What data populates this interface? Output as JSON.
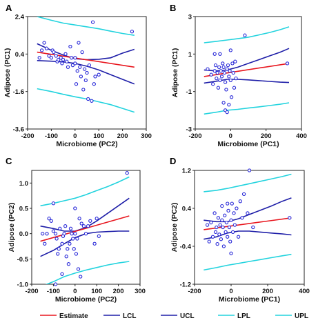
{
  "legend": [
    {
      "label": "Estimate",
      "color": "#e8161e"
    },
    {
      "label": "LCL",
      "color": "#1e1ea8"
    },
    {
      "label": "UCL",
      "color": "#1e1ea8"
    },
    {
      "label": "LPL",
      "color": "#22d3de"
    },
    {
      "label": "UPL",
      "color": "#22d3de"
    }
  ],
  "chart_data": [
    {
      "type": "scatter",
      "panel": "A",
      "xlabel": "Microbiome (PC2)",
      "ylabel": "Adipose (PC1)",
      "xlim": [
        -200,
        300
      ],
      "ylim": [
        -3.6,
        2.4
      ],
      "xticks": [
        -200,
        -100,
        0,
        100,
        200,
        300
      ],
      "yticks": [
        -3.6,
        -1.6,
        0.4,
        2.4
      ],
      "xticklabels": [
        "-200",
        "-100",
        "0",
        "100",
        "200",
        "300"
      ],
      "yticklabels": [
        "-3.6",
        "-1.6",
        "0.4",
        "2.4"
      ],
      "points": [
        [
          -150,
          0.2
        ],
        [
          -140,
          0.6
        ],
        [
          -130,
          1.0
        ],
        [
          -120,
          0.7
        ],
        [
          -110,
          0.3
        ],
        [
          -100,
          0.2
        ],
        [
          -95,
          0.6
        ],
        [
          -90,
          0.5
        ],
        [
          -80,
          0.3
        ],
        [
          -75,
          0.0
        ],
        [
          -70,
          0.1
        ],
        [
          -60,
          0.2
        ],
        [
          -55,
          -0.1
        ],
        [
          -50,
          0.1
        ],
        [
          -40,
          0.4
        ],
        [
          -35,
          0.0
        ],
        [
          -30,
          -0.3
        ],
        [
          -20,
          0.8
        ],
        [
          -15,
          0.2
        ],
        [
          -10,
          -0.2
        ],
        [
          0,
          0.2
        ],
        [
          0,
          -0.1
        ],
        [
          5,
          -1.2
        ],
        [
          10,
          -0.5
        ],
        [
          15,
          1.0
        ],
        [
          20,
          -0.3
        ],
        [
          25,
          -0.8
        ],
        [
          30,
          0.5
        ],
        [
          35,
          -1.5
        ],
        [
          40,
          -0.4
        ],
        [
          45,
          -1.0
        ],
        [
          50,
          -0.6
        ],
        [
          55,
          -2.0
        ],
        [
          60,
          -0.2
        ],
        [
          70,
          -2.1
        ],
        [
          75,
          2.1
        ],
        [
          80,
          -1.2
        ],
        [
          85,
          -0.8
        ],
        [
          100,
          -0.7
        ],
        [
          240,
          1.6
        ]
      ],
      "series": [
        {
          "name": "Estimate",
          "x": [
            -160,
            250
          ],
          "y": [
            0.5,
            -0.3
          ]
        },
        {
          "name": "LCL",
          "x": [
            -160,
            -100,
            -50,
            0,
            50,
            100,
            150,
            200,
            250
          ],
          "y": [
            0.05,
            0.02,
            -0.02,
            -0.1,
            -0.25,
            -0.45,
            -0.7,
            -0.95,
            -1.2
          ]
        },
        {
          "name": "UCL",
          "x": [
            -160,
            -100,
            -50,
            0,
            50,
            100,
            150,
            200,
            250
          ],
          "y": [
            0.95,
            0.6,
            0.35,
            0.15,
            0.1,
            0.12,
            0.2,
            0.45,
            0.65
          ]
        },
        {
          "name": "LPL",
          "x": [
            -160,
            -100,
            -50,
            0,
            50,
            100,
            150,
            200,
            250
          ],
          "y": [
            -1.45,
            -1.6,
            -1.75,
            -1.88,
            -2.0,
            -2.15,
            -2.3,
            -2.5,
            -2.7
          ]
        },
        {
          "name": "UPL",
          "x": [
            -160,
            -100,
            -50,
            0,
            50,
            100,
            150,
            200,
            250
          ],
          "y": [
            2.4,
            2.2,
            2.05,
            1.95,
            1.85,
            1.75,
            1.62,
            1.5,
            1.4
          ]
        }
      ]
    },
    {
      "type": "scatter",
      "panel": "B",
      "xlabel": "Microbiome (PC1)",
      "ylabel": "Adipose (PC1)",
      "xlim": [
        -200,
        400
      ],
      "ylim": [
        -3,
        3
      ],
      "xticks": [
        -200,
        0,
        200,
        400
      ],
      "yticks": [
        -3,
        -1,
        1,
        3
      ],
      "xticklabels": [
        "-200",
        "0",
        "200",
        "400"
      ],
      "yticklabels": [
        "-3",
        "-1",
        "1",
        "3"
      ],
      "points": [
        [
          -130,
          0.2
        ],
        [
          -110,
          -0.1
        ],
        [
          -100,
          -0.6
        ],
        [
          -90,
          0.1
        ],
        [
          -85,
          0.4
        ],
        [
          -80,
          -0.3
        ],
        [
          -75,
          0.0
        ],
        [
          -70,
          -0.8
        ],
        [
          -65,
          0.3
        ],
        [
          -60,
          -0.4
        ],
        [
          -55,
          0.1
        ],
        [
          -50,
          -0.2
        ],
        [
          -45,
          0.5
        ],
        [
          -40,
          0.3
        ],
        [
          -35,
          0.0
        ],
        [
          -30,
          -0.5
        ],
        [
          -25,
          -0.9
        ],
        [
          -20,
          0.2
        ],
        [
          -15,
          0.4
        ],
        [
          -10,
          -0.2
        ],
        [
          -5,
          0.1
        ],
        [
          0,
          -0.4
        ],
        [
          0,
          1.2
        ],
        [
          5,
          -1.3
        ],
        [
          10,
          0.5
        ],
        [
          15,
          0.0
        ],
        [
          20,
          -0.8
        ],
        [
          25,
          0.6
        ],
        [
          30,
          -0.3
        ],
        [
          -60,
          1.0
        ],
        [
          -90,
          1.0
        ],
        [
          -40,
          -1.6
        ],
        [
          -30,
          -2.0
        ],
        [
          -10,
          -1.7
        ],
        [
          80,
          2.0
        ],
        [
          -20,
          -2.1
        ],
        [
          320,
          0.5
        ]
      ],
      "series": [
        {
          "name": "Estimate",
          "x": [
            -150,
            330
          ],
          "y": [
            -0.2,
            0.5
          ]
        },
        {
          "name": "LCL",
          "x": [
            -150,
            -80,
            -20,
            40,
            100,
            160,
            220,
            280,
            330
          ],
          "y": [
            -0.55,
            -0.45,
            -0.35,
            -0.35,
            -0.38,
            -0.42,
            -0.46,
            -0.5,
            -0.52
          ]
        },
        {
          "name": "UCL",
          "x": [
            -150,
            -80,
            -20,
            40,
            100,
            160,
            220,
            280,
            330
          ],
          "y": [
            0.15,
            0.1,
            0.15,
            0.3,
            0.5,
            0.7,
            0.9,
            1.1,
            1.3
          ]
        },
        {
          "name": "LPL",
          "x": [
            -150,
            -80,
            -20,
            40,
            100,
            160,
            220,
            280,
            330
          ],
          "y": [
            -2.2,
            -2.1,
            -2.0,
            -1.95,
            -1.88,
            -1.82,
            -1.75,
            -1.68,
            -1.6
          ]
        },
        {
          "name": "UPL",
          "x": [
            -150,
            -80,
            -20,
            40,
            100,
            160,
            220,
            280,
            330
          ],
          "y": [
            1.6,
            1.68,
            1.75,
            1.82,
            1.9,
            2.02,
            2.15,
            2.3,
            2.45
          ]
        }
      ]
    },
    {
      "type": "scatter",
      "panel": "C",
      "xlabel": "Microbiome (PC2)",
      "ylabel": "Adipose (PC2)",
      "xlim": [
        -200,
        300
      ],
      "ylim": [
        -1.0,
        1.25
      ],
      "xticks": [
        -200,
        -100,
        0,
        100,
        200,
        300
      ],
      "yticks": [
        -1.0,
        -0.5,
        0.0,
        0.5,
        1.0
      ],
      "xticklabels": [
        "-200",
        "-100",
        "0",
        "100",
        "200",
        "300"
      ],
      "yticklabels": [
        "-1.0",
        "-0.5",
        "0.0",
        "0.5",
        "1.0"
      ],
      "points": [
        [
          -150,
          0.0
        ],
        [
          -140,
          -0.2
        ],
        [
          -130,
          0.0
        ],
        [
          -120,
          0.3
        ],
        [
          -110,
          0.25
        ],
        [
          -100,
          0.05
        ],
        [
          -100,
          0.6
        ],
        [
          -90,
          0.0
        ],
        [
          -85,
          -0.1
        ],
        [
          -80,
          -0.4
        ],
        [
          -75,
          -0.3
        ],
        [
          -70,
          0.1
        ],
        [
          -60,
          -0.2
        ],
        [
          -55,
          -0.05
        ],
        [
          -50,
          0.0
        ],
        [
          -45,
          0.15
        ],
        [
          -40,
          -0.45
        ],
        [
          -35,
          -0.3
        ],
        [
          -30,
          -0.6
        ],
        [
          -25,
          -0.2
        ],
        [
          -20,
          0.1
        ],
        [
          -15,
          0.0
        ],
        [
          -10,
          -0.1
        ],
        [
          -5,
          -0.3
        ],
        [
          0,
          0.5
        ],
        [
          0,
          0.0
        ],
        [
          5,
          -0.4
        ],
        [
          10,
          -0.1
        ],
        [
          15,
          -0.7
        ],
        [
          20,
          0.3
        ],
        [
          25,
          -0.85
        ],
        [
          30,
          0.2
        ],
        [
          40,
          0.15
        ],
        [
          50,
          0.0
        ],
        [
          60,
          0.15
        ],
        [
          70,
          0.25
        ],
        [
          90,
          -0.2
        ],
        [
          100,
          0.3
        ],
        [
          110,
          -0.05
        ],
        [
          240,
          1.2
        ],
        [
          -60,
          -0.8
        ],
        [
          -90,
          -1.0
        ]
      ],
      "series": [
        {
          "name": "Estimate",
          "x": [
            -160,
            250
          ],
          "y": [
            -0.15,
            0.35
          ]
        },
        {
          "name": "LCL",
          "x": [
            -160,
            -100,
            -50,
            0,
            50,
            100,
            150,
            200,
            250
          ],
          "y": [
            -0.45,
            -0.33,
            -0.2,
            -0.08,
            0.0,
            0.03,
            0.04,
            0.05,
            0.05
          ]
        },
        {
          "name": "UCL",
          "x": [
            -160,
            -100,
            -50,
            0,
            50,
            100,
            150,
            200,
            250
          ],
          "y": [
            0.15,
            0.1,
            0.05,
            0.05,
            0.12,
            0.25,
            0.4,
            0.55,
            0.7
          ]
        },
        {
          "name": "LPL",
          "x": [
            -160,
            -100,
            -50,
            0,
            50,
            100,
            150,
            200,
            250
          ],
          "y": [
            -1.05,
            -0.95,
            -0.85,
            -0.78,
            -0.72,
            -0.67,
            -0.62,
            -0.58,
            -0.55
          ]
        },
        {
          "name": "UPL",
          "x": [
            -160,
            -100,
            -50,
            0,
            50,
            100,
            150,
            200,
            250
          ],
          "y": [
            0.55,
            0.6,
            0.65,
            0.7,
            0.77,
            0.85,
            0.93,
            1.02,
            1.12
          ]
        }
      ]
    },
    {
      "type": "scatter",
      "panel": "D",
      "xlabel": "Microbiome (PC1)",
      "ylabel": "Adipose (PC2)",
      "xlim": [
        -200,
        400
      ],
      "ylim": [
        -1.2,
        1.2
      ],
      "xticks": [
        -200,
        0,
        200,
        400
      ],
      "yticks": [
        -1.2,
        -0.4,
        0.4,
        1.2
      ],
      "xticklabels": [
        "-200",
        "0",
        "200",
        "400"
      ],
      "yticklabels": [
        "-1.2",
        "-0.4",
        "0.4",
        "1.2"
      ],
      "points": [
        [
          -130,
          0.05
        ],
        [
          -120,
          -0.3
        ],
        [
          -110,
          0.1
        ],
        [
          -100,
          -0.2
        ],
        [
          -90,
          0.3
        ],
        [
          -85,
          -0.1
        ],
        [
          -80,
          0.0
        ],
        [
          -75,
          -0.35
        ],
        [
          -70,
          0.2
        ],
        [
          -65,
          -0.15
        ],
        [
          -60,
          0.05
        ],
        [
          -55,
          -0.25
        ],
        [
          -50,
          0.15
        ],
        [
          -45,
          0.0
        ],
        [
          -40,
          -0.4
        ],
        [
          -35,
          0.25
        ],
        [
          -30,
          -0.1
        ],
        [
          -25,
          0.1
        ],
        [
          -20,
          -0.2
        ],
        [
          -15,
          0.35
        ],
        [
          -10,
          0.0
        ],
        [
          -5,
          -0.3
        ],
        [
          0,
          0.15
        ],
        [
          0,
          -0.55
        ],
        [
          5,
          0.5
        ],
        [
          10,
          -0.1
        ],
        [
          15,
          0.3
        ],
        [
          20,
          0.05
        ],
        [
          30,
          0.4
        ],
        [
          40,
          -0.2
        ],
        [
          50,
          0.55
        ],
        [
          60,
          0.2
        ],
        [
          70,
          0.7
        ],
        [
          90,
          0.3
        ],
        [
          100,
          1.2
        ],
        [
          120,
          0.0
        ],
        [
          -20,
          0.5
        ],
        [
          -50,
          0.45
        ],
        [
          320,
          0.2
        ]
      ],
      "series": [
        {
          "name": "Estimate",
          "x": [
            -150,
            330
          ],
          "y": [
            -0.05,
            0.2
          ]
        },
        {
          "name": "LCL",
          "x": [
            -150,
            -80,
            -20,
            40,
            100,
            160,
            220,
            280,
            330
          ],
          "y": [
            -0.25,
            -0.2,
            -0.12,
            -0.08,
            -0.08,
            -0.1,
            -0.12,
            -0.14,
            -0.16
          ]
        },
        {
          "name": "UCL",
          "x": [
            -150,
            -80,
            -20,
            40,
            100,
            160,
            220,
            280,
            330
          ],
          "y": [
            0.15,
            0.12,
            0.12,
            0.18,
            0.27,
            0.36,
            0.45,
            0.55,
            0.62
          ]
        },
        {
          "name": "LPL",
          "x": [
            -150,
            -80,
            -20,
            40,
            100,
            160,
            220,
            280,
            330
          ],
          "y": [
            -0.9,
            -0.85,
            -0.8,
            -0.76,
            -0.72,
            -0.68,
            -0.64,
            -0.6,
            -0.57
          ]
        },
        {
          "name": "UPL",
          "x": [
            -150,
            -80,
            -20,
            40,
            100,
            160,
            220,
            280,
            330
          ],
          "y": [
            0.75,
            0.78,
            0.82,
            0.87,
            0.92,
            0.97,
            1.02,
            1.07,
            1.12
          ]
        }
      ]
    }
  ]
}
